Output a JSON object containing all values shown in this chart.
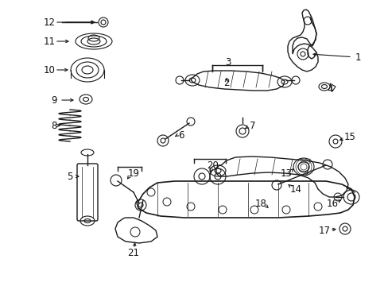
{
  "bg": "#ffffff",
  "lc": "#1a1a1a",
  "lw": 1.0,
  "fs": 8.5
}
